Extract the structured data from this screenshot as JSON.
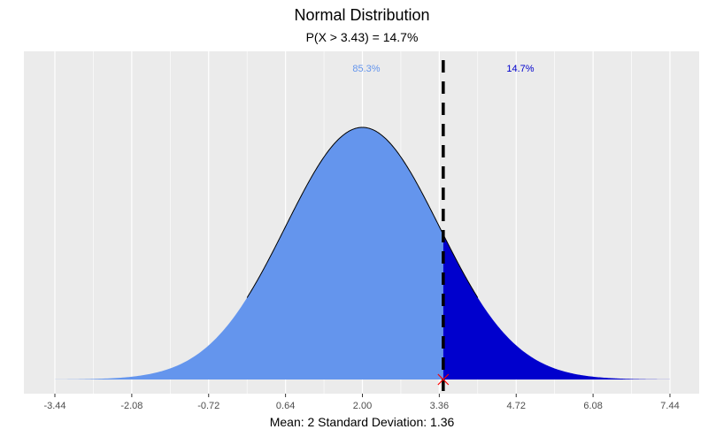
{
  "chart_data": {
    "type": "area",
    "title": "Normal Distribution",
    "subtitle": "P(X > 3.43) = 14.7%",
    "xlabel": "Mean: 2  Standard Deviation: 1.36",
    "ylabel": "",
    "mean": 2,
    "sd": 1.36,
    "cutoff": 3.43,
    "xlim": [
      -3.44,
      7.44
    ],
    "x_ticks": [
      "-3.44",
      "-2.08",
      "-0.72",
      "0.64",
      "2.00",
      "3.36",
      "4.72",
      "6.08",
      "7.44"
    ],
    "grid": true,
    "regions": [
      {
        "label": "85.3%",
        "from": -3.44,
        "to": 3.43,
        "color": "#6495ED"
      },
      {
        "label": "14.7%",
        "from": 3.43,
        "to": 7.44,
        "color": "#0000CD"
      }
    ],
    "label_colors": {
      "left": "#6495ED",
      "right": "#0000CD"
    },
    "outline_range": [
      -0.04,
      4.04
    ],
    "marker_color": "#FF0000",
    "panel_color": "#EBEBEB"
  }
}
